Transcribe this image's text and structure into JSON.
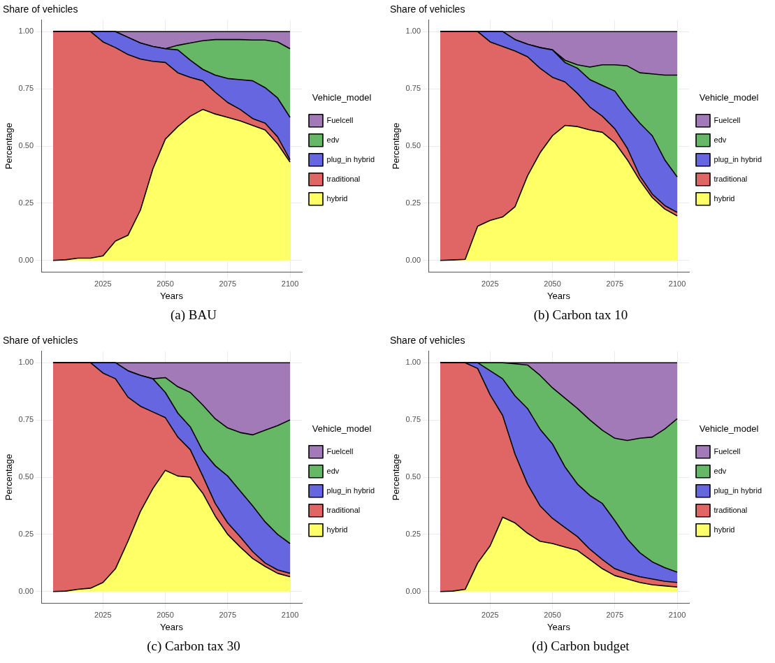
{
  "chart_data": [
    {
      "type": "area",
      "stacked": true,
      "title": "Share of vehicles",
      "xlabel": "Years",
      "ylabel": "Percentage",
      "legend_title": "Vehicle_model",
      "legend": "right",
      "grid": true,
      "annotations": [
        "(a) BAU"
      ],
      "x": [
        2005,
        2010,
        2015,
        2020,
        2025,
        2030,
        2035,
        2040,
        2045,
        2050,
        2055,
        2060,
        2065,
        2070,
        2075,
        2080,
        2085,
        2090,
        2095,
        2100
      ],
      "xlim": [
        2000.25,
        2104.75
      ],
      "xticks": [
        2025,
        2050,
        2075,
        2100
      ],
      "ylim": [
        -0.05,
        1.05
      ],
      "yticks": [
        {
          "value": 0,
          "label": "0.00"
        },
        {
          "value": 0.25,
          "label": "0.25"
        },
        {
          "value": 0.5,
          "label": "0.50"
        },
        {
          "value": 0.75,
          "label": "0.75"
        },
        {
          "value": 1,
          "label": "1.00"
        }
      ],
      "series": [
        {
          "name": "hybrid",
          "color": "#ffff66",
          "values": [
            0,
            0.003,
            0.01,
            0.01,
            0.02,
            0.085,
            0.11,
            0.22,
            0.4,
            0.53,
            0.585,
            0.63,
            0.66,
            0.64,
            0.625,
            0.61,
            0.59,
            0.57,
            0.51,
            0.43
          ]
        },
        {
          "name": "traditional",
          "color": "#e06666",
          "values": [
            1,
            0.997,
            0.99,
            0.99,
            0.935,
            0.845,
            0.79,
            0.66,
            0.47,
            0.335,
            0.235,
            0.17,
            0.125,
            0.095,
            0.065,
            0.05,
            0.03,
            0.03,
            0.03,
            0.01
          ]
        },
        {
          "name": "plug_in hybrid",
          "color": "#6666e0",
          "values": [
            0,
            0,
            0,
            0,
            0.045,
            0.07,
            0.075,
            0.07,
            0.065,
            0.06,
            0.1,
            0.075,
            0.05,
            0.075,
            0.105,
            0.13,
            0.165,
            0.155,
            0.17,
            0.185
          ]
        },
        {
          "name": "edv",
          "color": "#66b866",
          "values": [
            0,
            0,
            0,
            0,
            0,
            0,
            0,
            0,
            0,
            0,
            0.02,
            0.075,
            0.125,
            0.155,
            0.17,
            0.175,
            0.178,
            0.208,
            0.245,
            0.3
          ]
        },
        {
          "name": "Fuelcell",
          "color": "#a37ab8",
          "values": [
            0,
            0,
            0,
            0,
            0,
            0,
            0.025,
            0.05,
            0.065,
            0.075,
            0.06,
            0.05,
            0.04,
            0.035,
            0.035,
            0.035,
            0.037,
            0.037,
            0.045,
            0.075
          ]
        }
      ]
    },
    {
      "type": "area",
      "stacked": true,
      "title": "Share of vehicles",
      "xlabel": "Years",
      "ylabel": "Percentage",
      "legend_title": "Vehicle_model",
      "legend": "right",
      "grid": true,
      "annotations": [
        "(b) Carbon tax 10"
      ],
      "x": [
        2005,
        2010,
        2015,
        2020,
        2025,
        2030,
        2035,
        2040,
        2045,
        2050,
        2055,
        2060,
        2065,
        2070,
        2075,
        2080,
        2085,
        2090,
        2095,
        2100
      ],
      "xlim": [
        2000.25,
        2104.75
      ],
      "xticks": [
        2025,
        2050,
        2075,
        2100
      ],
      "ylim": [
        -0.05,
        1.05
      ],
      "yticks": [
        {
          "value": 0,
          "label": "0.00"
        },
        {
          "value": 0.25,
          "label": "0.25"
        },
        {
          "value": 0.5,
          "label": "0.50"
        },
        {
          "value": 0.75,
          "label": "0.75"
        },
        {
          "value": 1,
          "label": "1.00"
        }
      ],
      "series": [
        {
          "name": "hybrid",
          "color": "#ffff66",
          "values": [
            0,
            0.002,
            0.005,
            0.15,
            0.175,
            0.19,
            0.235,
            0.37,
            0.47,
            0.545,
            0.59,
            0.585,
            0.57,
            0.56,
            0.515,
            0.44,
            0.35,
            0.275,
            0.225,
            0.195
          ]
        },
        {
          "name": "traditional",
          "color": "#e06666",
          "values": [
            1,
            0.998,
            0.995,
            0.85,
            0.78,
            0.745,
            0.68,
            0.52,
            0.37,
            0.255,
            0.19,
            0.145,
            0.1,
            0.07,
            0.06,
            0.05,
            0.02,
            0.015,
            0.015,
            0.015
          ]
        },
        {
          "name": "plug_in hybrid",
          "color": "#6666e0",
          "values": [
            0,
            0,
            0,
            0,
            0.045,
            0.065,
            0.05,
            0.055,
            0.09,
            0.12,
            0.085,
            0.11,
            0.12,
            0.135,
            0.165,
            0.175,
            0.23,
            0.255,
            0.2,
            0.155
          ]
        },
        {
          "name": "edv",
          "color": "#66b866",
          "values": [
            0,
            0,
            0,
            0,
            0,
            0,
            0,
            0,
            0,
            0,
            0.01,
            0.015,
            0.055,
            0.09,
            0.115,
            0.185,
            0.22,
            0.27,
            0.37,
            0.445
          ]
        },
        {
          "name": "Fuelcell",
          "color": "#a37ab8",
          "values": [
            0,
            0,
            0,
            0,
            0,
            0,
            0.035,
            0.055,
            0.07,
            0.08,
            0.125,
            0.145,
            0.155,
            0.145,
            0.145,
            0.15,
            0.18,
            0.185,
            0.19,
            0.19
          ]
        }
      ]
    },
    {
      "type": "area",
      "stacked": true,
      "title": "Share of vehicles",
      "xlabel": "Years",
      "ylabel": "Percentage",
      "legend_title": "Vehicle_model",
      "legend": "right",
      "grid": true,
      "annotations": [
        "(c) Carbon tax 30"
      ],
      "x": [
        2005,
        2010,
        2015,
        2020,
        2025,
        2030,
        2035,
        2040,
        2045,
        2050,
        2055,
        2060,
        2065,
        2070,
        2075,
        2080,
        2085,
        2090,
        2095,
        2100
      ],
      "xlim": [
        2000.25,
        2104.75
      ],
      "xticks": [
        2025,
        2050,
        2075,
        2100
      ],
      "ylim": [
        -0.05,
        1.05
      ],
      "yticks": [
        {
          "value": 0,
          "label": "0.00"
        },
        {
          "value": 0.25,
          "label": "0.25"
        },
        {
          "value": 0.5,
          "label": "0.50"
        },
        {
          "value": 0.75,
          "label": "0.75"
        },
        {
          "value": 1,
          "label": "1.00"
        }
      ],
      "series": [
        {
          "name": "hybrid",
          "color": "#ffff66",
          "values": [
            0,
            0.002,
            0.01,
            0.015,
            0.04,
            0.1,
            0.22,
            0.35,
            0.45,
            0.53,
            0.505,
            0.5,
            0.43,
            0.33,
            0.25,
            0.195,
            0.145,
            0.11,
            0.08,
            0.065
          ]
        },
        {
          "name": "traditional",
          "color": "#e06666",
          "values": [
            1,
            0.998,
            0.99,
            0.985,
            0.915,
            0.83,
            0.63,
            0.46,
            0.335,
            0.23,
            0.17,
            0.12,
            0.075,
            0.055,
            0.05,
            0.045,
            0.03,
            0.015,
            0.015,
            0.015
          ]
        },
        {
          "name": "plug_in hybrid",
          "color": "#6666e0",
          "values": [
            0,
            0,
            0,
            0,
            0.045,
            0.07,
            0.115,
            0.135,
            0.145,
            0.11,
            0.105,
            0.1,
            0.11,
            0.165,
            0.205,
            0.2,
            0.2,
            0.18,
            0.155,
            0.13
          ]
        },
        {
          "name": "edv",
          "color": "#66b866",
          "values": [
            0,
            0,
            0,
            0,
            0,
            0,
            0,
            0,
            0,
            0.065,
            0.115,
            0.15,
            0.2,
            0.205,
            0.21,
            0.255,
            0.31,
            0.4,
            0.475,
            0.54
          ]
        },
        {
          "name": "Fuelcell",
          "color": "#a37ab8",
          "values": [
            0,
            0,
            0,
            0,
            0,
            0,
            0.035,
            0.055,
            0.07,
            0.065,
            0.105,
            0.13,
            0.185,
            0.245,
            0.285,
            0.305,
            0.315,
            0.295,
            0.275,
            0.25
          ]
        }
      ]
    },
    {
      "type": "area",
      "stacked": true,
      "title": "Share of vehicles",
      "xlabel": "Years",
      "ylabel": "Percentage",
      "legend_title": "Vehicle_model",
      "legend": "right",
      "grid": true,
      "annotations": [
        "(d) Carbon budget"
      ],
      "x": [
        2005,
        2010,
        2015,
        2020,
        2025,
        2030,
        2035,
        2040,
        2045,
        2050,
        2055,
        2060,
        2065,
        2070,
        2075,
        2080,
        2085,
        2090,
        2095,
        2100
      ],
      "xlim": [
        2000.25,
        2104.75
      ],
      "xticks": [
        2025,
        2050,
        2075,
        2100
      ],
      "ylim": [
        -0.05,
        1.05
      ],
      "yticks": [
        {
          "value": 0,
          "label": "0.00"
        },
        {
          "value": 0.25,
          "label": "0.25"
        },
        {
          "value": 0.5,
          "label": "0.50"
        },
        {
          "value": 0.75,
          "label": "0.75"
        },
        {
          "value": 1,
          "label": "1.00"
        }
      ],
      "series": [
        {
          "name": "hybrid",
          "color": "#ffff66",
          "values": [
            0,
            0.002,
            0.01,
            0.125,
            0.2,
            0.325,
            0.3,
            0.255,
            0.22,
            0.21,
            0.195,
            0.18,
            0.14,
            0.1,
            0.07,
            0.055,
            0.04,
            0.03,
            0.025,
            0.02
          ]
        },
        {
          "name": "traditional",
          "color": "#e06666",
          "values": [
            1,
            0.998,
            0.99,
            0.85,
            0.66,
            0.445,
            0.3,
            0.215,
            0.155,
            0.11,
            0.085,
            0.06,
            0.045,
            0.04,
            0.03,
            0.025,
            0.025,
            0.025,
            0.02,
            0.02
          ]
        },
        {
          "name": "plug_in hybrid",
          "color": "#6666e0",
          "values": [
            0,
            0,
            0,
            0.025,
            0.105,
            0.16,
            0.255,
            0.33,
            0.335,
            0.325,
            0.265,
            0.23,
            0.235,
            0.245,
            0.21,
            0.15,
            0.105,
            0.075,
            0.06,
            0.045
          ]
        },
        {
          "name": "edv",
          "color": "#66b866",
          "values": [
            0,
            0,
            0,
            0,
            0.035,
            0.07,
            0.14,
            0.19,
            0.235,
            0.245,
            0.3,
            0.33,
            0.33,
            0.32,
            0.36,
            0.43,
            0.5,
            0.545,
            0.605,
            0.67
          ]
        },
        {
          "name": "Fuelcell",
          "color": "#a37ab8",
          "values": [
            0,
            0,
            0,
            0,
            0,
            0,
            0.005,
            0.01,
            0.055,
            0.11,
            0.155,
            0.2,
            0.25,
            0.295,
            0.33,
            0.34,
            0.33,
            0.325,
            0.29,
            0.245
          ]
        }
      ]
    }
  ]
}
